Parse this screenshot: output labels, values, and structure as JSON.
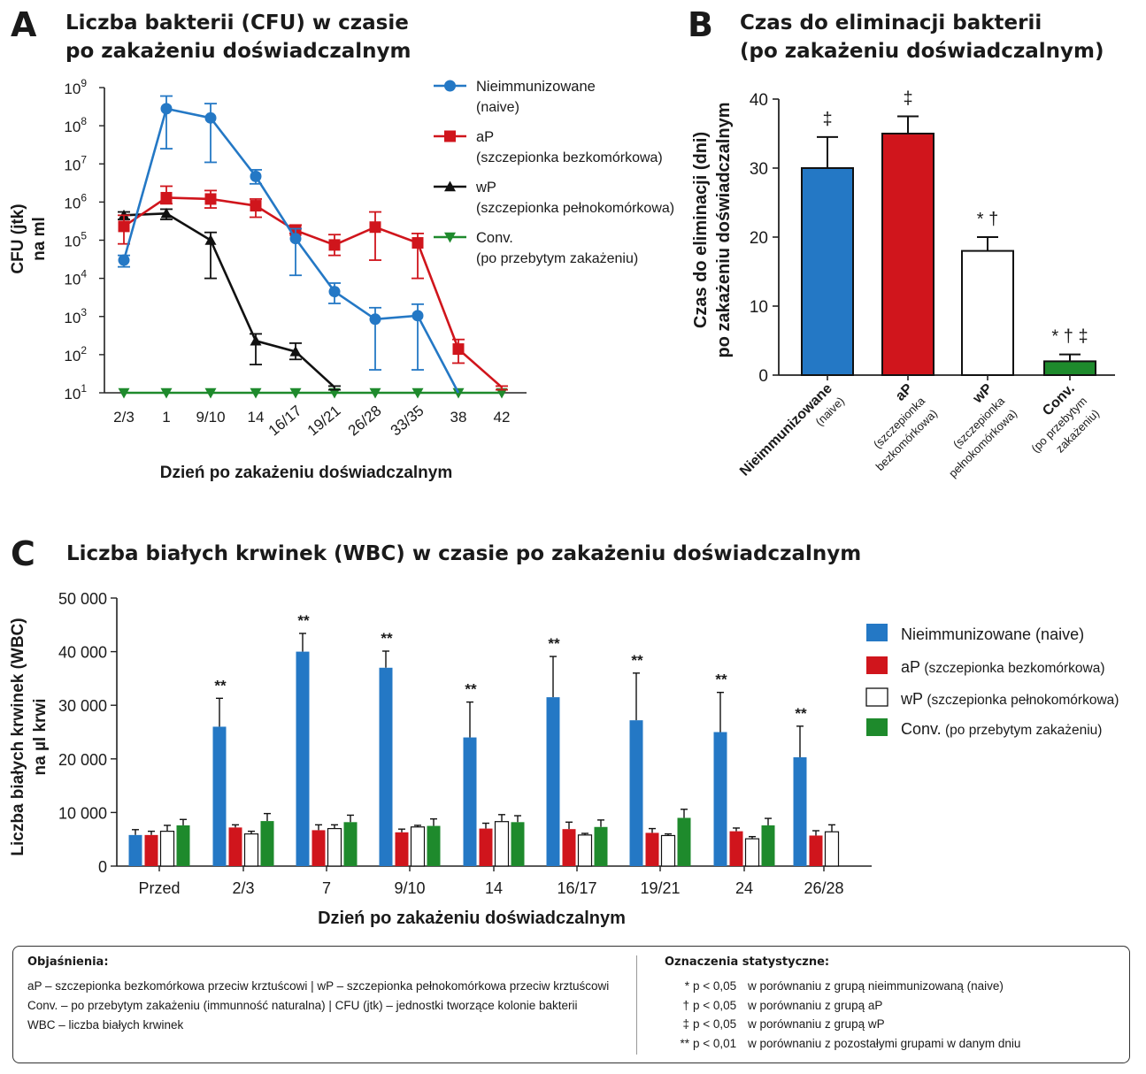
{
  "panels": {
    "a": {
      "letter": "A",
      "title_line1": "Liczba bakterii (CFU) w czasie",
      "title_line2": "po zakażeniu doświadczalnym"
    },
    "b": {
      "letter": "B",
      "title_line1": "Czas do eliminacji bakterii",
      "title_line2": "(po zakażeniu doświadczalnym)"
    },
    "c": {
      "letter": "C",
      "title": "Liczba białych krwinek (WBC) w czasie po zakażeniu doświadczalnym"
    }
  },
  "colors": {
    "blue": "#2478c5",
    "red": "#d0151c",
    "black": "#111111",
    "green": "#1e8a2c",
    "white": "#ffffff"
  },
  "chart_data": [
    {
      "type": "line",
      "yscale": "log",
      "ylim": [
        10,
        1000000000
      ],
      "ylabel_line1": "CFU (jtk)",
      "ylabel_line2": "na ml",
      "xlabel": "Dzień po zakażeniu doświadczalnym",
      "ytick_base": "10",
      "yticks_exp": [
        "1",
        "2",
        "3",
        "4",
        "5",
        "6",
        "7",
        "8",
        "9"
      ],
      "categories": [
        "2/3",
        "1",
        "9/10",
        "14",
        "16/17",
        "19/21",
        "26/28",
        "33/35",
        "38",
        "42"
      ],
      "series": [
        {
          "name": "Nieimmunizowane",
          "name2": "(naive)",
          "color": "blue",
          "marker": "circle",
          "values": [
            30000,
            280000000,
            160000000,
            4700000,
            110000,
            4500,
            850,
            1050,
            10,
            null
          ],
          "err_hi": [
            40000,
            600000000,
            380000000,
            7000000,
            200000,
            7500,
            1700,
            2100,
            null,
            null
          ],
          "err_lo": [
            20000,
            25000000,
            11000000,
            3000000,
            12000,
            2200,
            40,
            40,
            null,
            null
          ]
        },
        {
          "name": "aP",
          "name2": "(szczepionka bezkomórkowa)",
          "color": "red",
          "marker": "square",
          "values": [
            230000,
            1300000,
            1200000,
            800000,
            180000,
            75000,
            220000,
            85000,
            140,
            14
          ],
          "err_hi": [
            450000,
            2600000,
            2000000,
            1200000,
            250000,
            140000,
            550000,
            150000,
            250,
            15
          ],
          "err_lo": [
            80000,
            900000,
            700000,
            400000,
            150000,
            40000,
            30000,
            10000,
            60,
            12
          ]
        },
        {
          "name": "wP",
          "name2": "(szczepionka pełnokomórkowa)",
          "color": "black",
          "marker": "triangle",
          "values": [
            450000,
            500000,
            100000,
            230,
            120,
            14,
            null,
            null,
            null,
            null
          ],
          "err_hi": [
            550000,
            650000,
            160000,
            350,
            200,
            15,
            null,
            null,
            null,
            null
          ],
          "err_lo": [
            350000,
            350000,
            10000,
            55,
            75,
            12,
            null,
            null,
            null,
            null
          ]
        },
        {
          "name": "Conv.",
          "name2": "(po przebytym zakażeniu)",
          "color": "green",
          "marker": "triangle-down",
          "values": [
            10,
            10,
            10,
            10,
            10,
            10,
            10,
            10,
            10,
            10
          ]
        }
      ]
    },
    {
      "type": "bar",
      "ylim": [
        0,
        40
      ],
      "yticks": [
        "0",
        "10",
        "20",
        "30",
        "40"
      ],
      "ylabel_line1": "Czas do eliminacji (dni)",
      "ylabel_line2": "po zakażeniu doświadczalnym",
      "categories": [
        {
          "line1": "Nieimmunizowane",
          "line2": "(naive)"
        },
        {
          "line1": "aP",
          "line2": "(szczepionka",
          "line3": "bezkomórkowa)"
        },
        {
          "line1": "wP",
          "line2": "(szczepionka",
          "line3": "pełnokomórkowa)"
        },
        {
          "line1": "Conv.",
          "line2": "(po przebytym",
          "line3": "zakażeniu)"
        }
      ],
      "values": [
        30,
        35,
        18,
        2
      ],
      "errors": [
        4.5,
        2.5,
        2,
        1
      ],
      "colors": [
        "blue",
        "red",
        "white",
        "green"
      ],
      "annotations": [
        "‡",
        "‡",
        "* †",
        "* † ‡"
      ]
    },
    {
      "type": "bar",
      "ylim": [
        0,
        50000
      ],
      "yticks": [
        "0",
        "10 000",
        "20 000",
        "30 000",
        "40 000",
        "50 000"
      ],
      "ylabel_line1": "Liczba białych krwinek (WBC)",
      "ylabel_line2": "na µl krwi",
      "xlabel": "Dzień po zakażeniu doświadczalnym",
      "categories": [
        "Przed",
        "2/3",
        "7",
        "9/10",
        "14",
        "16/17",
        "19/21",
        "24",
        "26/28"
      ],
      "series": [
        {
          "name": "Nieimmunizowane (naive)",
          "color": "blue",
          "values": [
            5800,
            26000,
            40000,
            37000,
            24000,
            31500,
            27200,
            25000,
            20300
          ],
          "errors": [
            1000,
            5300,
            3400,
            3100,
            6600,
            7600,
            8800,
            7400,
            5800
          ]
        },
        {
          "name": "aP",
          "name_note": "(szczepionka bezkomórkowa)",
          "color": "red",
          "values": [
            5800,
            7200,
            6700,
            6300,
            7000,
            6900,
            6200,
            6500,
            5700
          ],
          "errors": [
            700,
            500,
            1000,
            600,
            1000,
            1300,
            800,
            600,
            900
          ]
        },
        {
          "name": "wP",
          "name_note": "(szczepionka pełnokomórkowa)",
          "color": "white",
          "values": [
            6500,
            6000,
            7000,
            7300,
            8300,
            5800,
            5700,
            5100,
            6400
          ],
          "errors": [
            1100,
            500,
            700,
            300,
            1300,
            300,
            300,
            400,
            1300
          ]
        },
        {
          "name": "Conv.",
          "name_note": "(po przebytym zakażeniu)",
          "color": "green",
          "values": [
            7600,
            8400,
            8200,
            7500,
            8200,
            7300,
            9000,
            7600,
            null
          ],
          "errors": [
            1100,
            1400,
            1300,
            1300,
            1200,
            1300,
            1600,
            1300,
            null
          ]
        }
      ],
      "annotations": [
        "",
        "**",
        "**",
        "**",
        "**",
        "**",
        "**",
        "**",
        "**"
      ]
    }
  ],
  "footer": {
    "explanations_heading": "Objaśnienia:",
    "explanations": [
      "aP – szczepionka bezkomórkowa przeciw krztuścowi  |  wP – szczepionka pełnokomórkowa przeciw krztuścowi",
      "Conv. – po przebytym zakażeniu (immunność naturalna)  |  CFU (jtk) – jednostki tworzące kolonie bakterii",
      "WBC – liczba białych krwinek"
    ],
    "stats_heading": "Oznaczenia statystyczne:",
    "stats": [
      {
        "symbol": "*",
        "p": "p < 0,05",
        "text": "w porównaniu z grupą nieimmunizowaną (naive)"
      },
      {
        "symbol": "†",
        "p": "p < 0,05",
        "text": "w porównaniu z grupą aP"
      },
      {
        "symbol": "‡",
        "p": "p < 0,05",
        "text": "w porównaniu z grupą wP"
      },
      {
        "symbol": "**",
        "p": "p < 0,01",
        "text": "w porównaniu z pozostałymi grupami w danym dniu"
      }
    ]
  }
}
